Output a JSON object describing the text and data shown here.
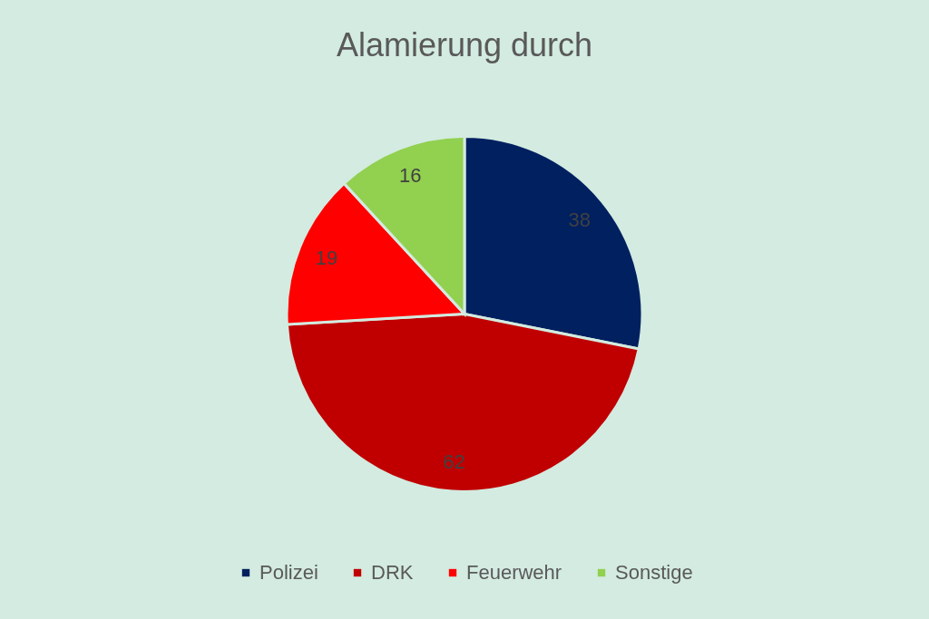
{
  "chart_data": {
    "type": "pie",
    "title": "Alamierung durch",
    "categories": [
      "Polizei",
      "DRK",
      "Feuerwehr",
      "Sonstige"
    ],
    "values": [
      38,
      62,
      19,
      16
    ],
    "colors": [
      "#002060",
      "#c00000",
      "#ff0000",
      "#92d050"
    ],
    "data_labels": true,
    "legend": "bottom"
  }
}
